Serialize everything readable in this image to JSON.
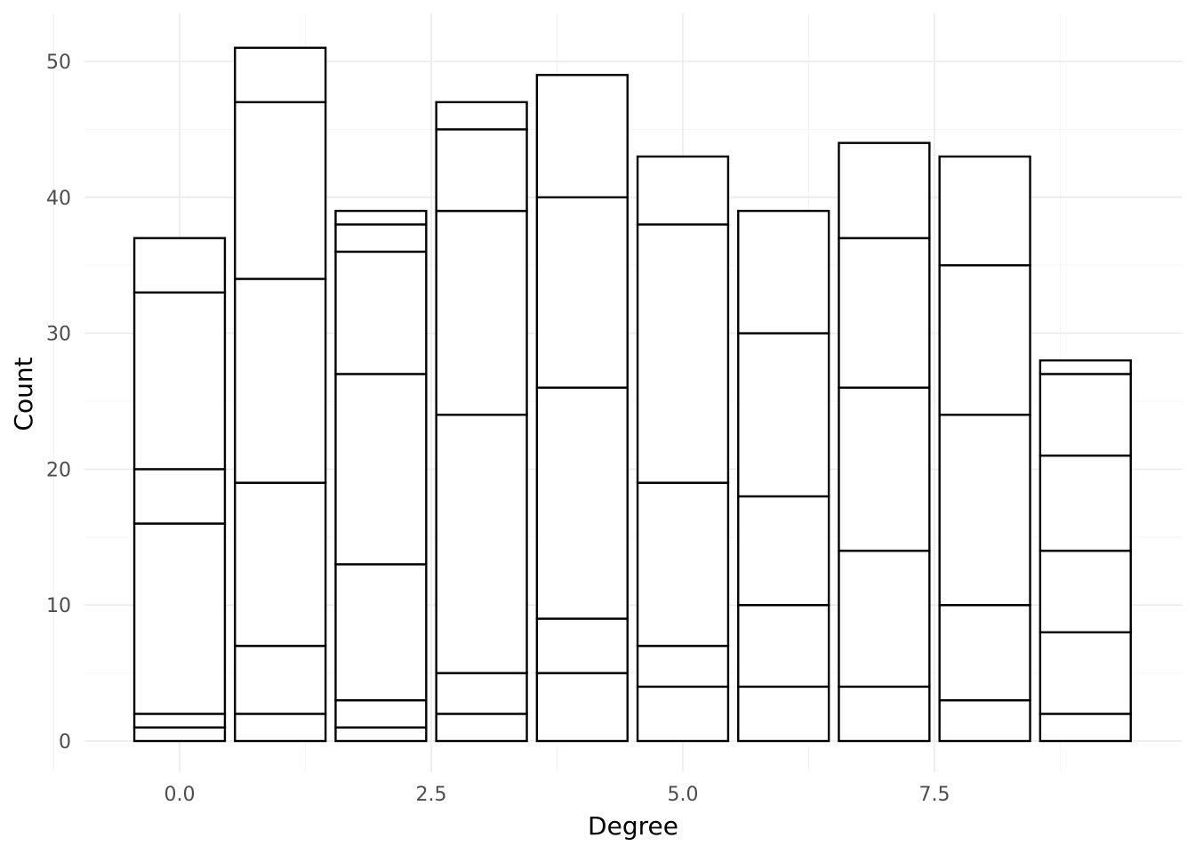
{
  "chart_data": {
    "type": "bar",
    "stacked": true,
    "xlabel": "Degree",
    "ylabel": "Count",
    "xlim": [
      -1.0,
      9.5
    ],
    "ylim": [
      0,
      52.5
    ],
    "x_ticks": [
      "0.0",
      "2.5",
      "5.0",
      "7.5"
    ],
    "y_ticks": [
      "0",
      "10",
      "20",
      "30",
      "40",
      "50"
    ],
    "grid": true,
    "legend": "none",
    "bars": [
      {
        "x": 0,
        "total": 37,
        "boundaries": [
          1,
          2,
          16,
          20,
          33,
          37
        ]
      },
      {
        "x": 1,
        "total": 51,
        "boundaries": [
          2,
          7,
          19,
          34,
          47,
          51
        ]
      },
      {
        "x": 2,
        "total": 39,
        "boundaries": [
          1,
          3,
          13,
          27,
          36,
          38,
          39
        ]
      },
      {
        "x": 3,
        "total": 47,
        "boundaries": [
          2,
          5,
          24,
          39,
          45,
          47
        ]
      },
      {
        "x": 4,
        "total": 49,
        "boundaries": [
          5,
          9,
          26,
          40,
          49
        ]
      },
      {
        "x": 5,
        "total": 43,
        "boundaries": [
          4,
          7,
          19,
          38,
          43
        ]
      },
      {
        "x": 6,
        "total": 39,
        "boundaries": [
          4,
          10,
          18,
          30,
          39
        ]
      },
      {
        "x": 7,
        "total": 44,
        "boundaries": [
          4,
          14,
          26,
          37,
          44
        ]
      },
      {
        "x": 8,
        "total": 43,
        "boundaries": [
          3,
          10,
          24,
          35,
          43
        ]
      },
      {
        "x": 9,
        "total": 28,
        "boundaries": [
          2,
          8,
          14,
          21,
          27,
          28
        ]
      }
    ]
  }
}
